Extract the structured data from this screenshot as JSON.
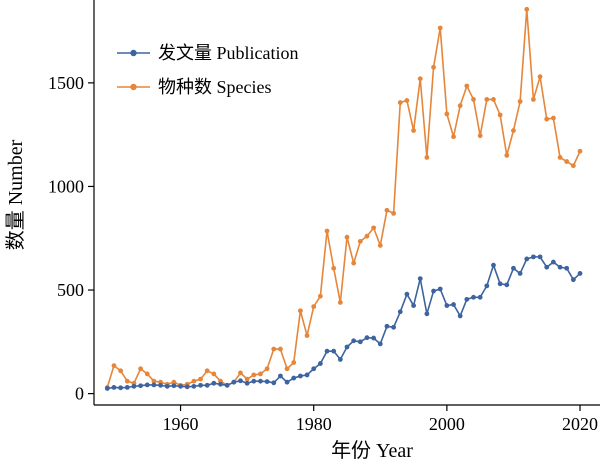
{
  "chart_data": {
    "type": "line",
    "xlabel": "年份 Year",
    "ylabel": "数量 Number",
    "xlim": [
      1947,
      2023
    ],
    "ylim": [
      -55,
      1900
    ],
    "xticks": [
      1960,
      1980,
      2000,
      2020
    ],
    "yticks": [
      0,
      500,
      1000,
      1500
    ],
    "grid": false,
    "legend_position": "top-left",
    "x": [
      1949,
      1950,
      1951,
      1952,
      1953,
      1954,
      1955,
      1956,
      1957,
      1958,
      1959,
      1960,
      1961,
      1962,
      1963,
      1964,
      1965,
      1966,
      1967,
      1968,
      1969,
      1970,
      1971,
      1972,
      1973,
      1974,
      1975,
      1976,
      1977,
      1978,
      1979,
      1980,
      1981,
      1982,
      1983,
      1984,
      1985,
      1986,
      1987,
      1988,
      1989,
      1990,
      1991,
      1992,
      1993,
      1994,
      1995,
      1996,
      1997,
      1998,
      1999,
      2000,
      2001,
      2002,
      2003,
      2004,
      2005,
      2006,
      2007,
      2008,
      2009,
      2010,
      2011,
      2012,
      2013,
      2014,
      2015,
      2016,
      2017,
      2018,
      2019,
      2020
    ],
    "series": [
      {
        "name": "发文量 Publication",
        "color": "#3d63a0",
        "values": [
          25,
          30,
          28,
          30,
          35,
          38,
          42,
          42,
          40,
          35,
          38,
          35,
          33,
          35,
          40,
          40,
          50,
          45,
          40,
          55,
          62,
          50,
          60,
          60,
          58,
          52,
          85,
          55,
          75,
          85,
          90,
          120,
          145,
          205,
          205,
          165,
          225,
          255,
          250,
          270,
          268,
          240,
          325,
          320,
          395,
          480,
          425,
          555,
          385,
          495,
          505,
          425,
          430,
          375,
          455,
          465,
          465,
          520,
          620,
          530,
          525,
          605,
          580,
          650,
          660,
          660,
          610,
          635,
          610,
          605,
          550,
          580
        ]
      },
      {
        "name": "物种数 Species",
        "color": "#e5863a",
        "values": [
          30,
          135,
          110,
          60,
          50,
          120,
          95,
          60,
          55,
          45,
          55,
          40,
          45,
          60,
          70,
          110,
          95,
          60,
          40,
          55,
          100,
          70,
          90,
          95,
          120,
          215,
          215,
          120,
          150,
          400,
          280,
          420,
          470,
          785,
          605,
          440,
          755,
          630,
          735,
          760,
          800,
          715,
          885,
          870,
          1405,
          1415,
          1270,
          1520,
          1140,
          1575,
          1765,
          1350,
          1240,
          1390,
          1485,
          1420,
          1245,
          1420,
          1420,
          1345,
          1150,
          1270,
          1410,
          1855,
          1420,
          1530,
          1325,
          1330,
          1140,
          1120,
          1100,
          1170
        ]
      }
    ]
  }
}
